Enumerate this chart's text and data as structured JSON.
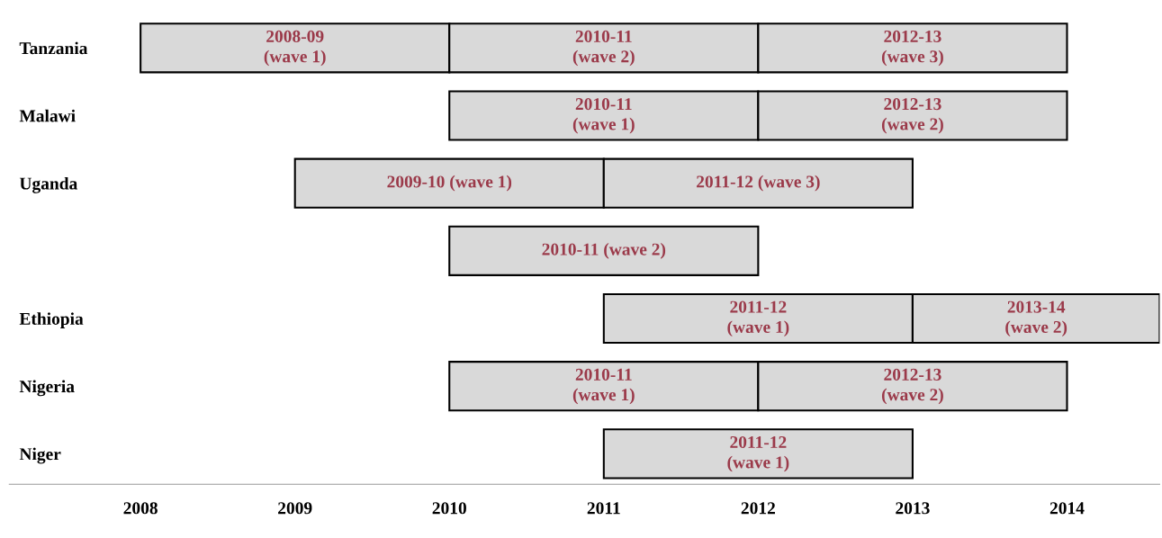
{
  "chart_data": {
    "type": "bar",
    "orientation": "horizontal",
    "categories": [
      "Tanzania",
      "Malawi",
      "Uganda",
      null,
      "Ethiopia",
      "Nigeria",
      "Niger"
    ],
    "series": [
      {
        "color": "#d9d9d9",
        "base": [
          2008,
          2010,
          2009,
          2010,
          2011,
          2010,
          2011
        ],
        "values": [
          2,
          2,
          2,
          2,
          2,
          2,
          2
        ],
        "value_labels": [
          "2008-09\n(wave 1)",
          "2010-11\n(wave 1)",
          "2009-10 (wave 1)",
          "2010-11 (wave 2)",
          "2011-12\n(wave 1)",
          "2010-11\n(wave 1)",
          "2011-12\n(wave 1)"
        ]
      },
      {
        "color": "#d9d9d9",
        "base": [
          2010,
          2012,
          2011,
          null,
          2013,
          2012,
          null
        ],
        "values": [
          2,
          2,
          2,
          null,
          1.6,
          2,
          null
        ],
        "value_labels": [
          "2010-11\n(wave 2)",
          "2012-13\n(wave 2)",
          "2011-12 (wave 3)",
          null,
          "2013-14\n(wave 2)",
          "2012-13\n(wave 2)",
          null
        ]
      },
      {
        "color": "#d9d9d9",
        "base": [
          2012,
          null,
          null,
          null,
          null,
          null,
          null
        ],
        "values": [
          2,
          null,
          null,
          null,
          null,
          null,
          null
        ],
        "value_labels": [
          "2012-13\n(wave 3)",
          null,
          null,
          null,
          null,
          null,
          null
        ]
      }
    ],
    "xlim": [
      2007.15,
      2014.6
    ],
    "xticks": [
      2008,
      2009,
      2010,
      2011,
      2012,
      2013,
      2014
    ],
    "grid": false
  }
}
